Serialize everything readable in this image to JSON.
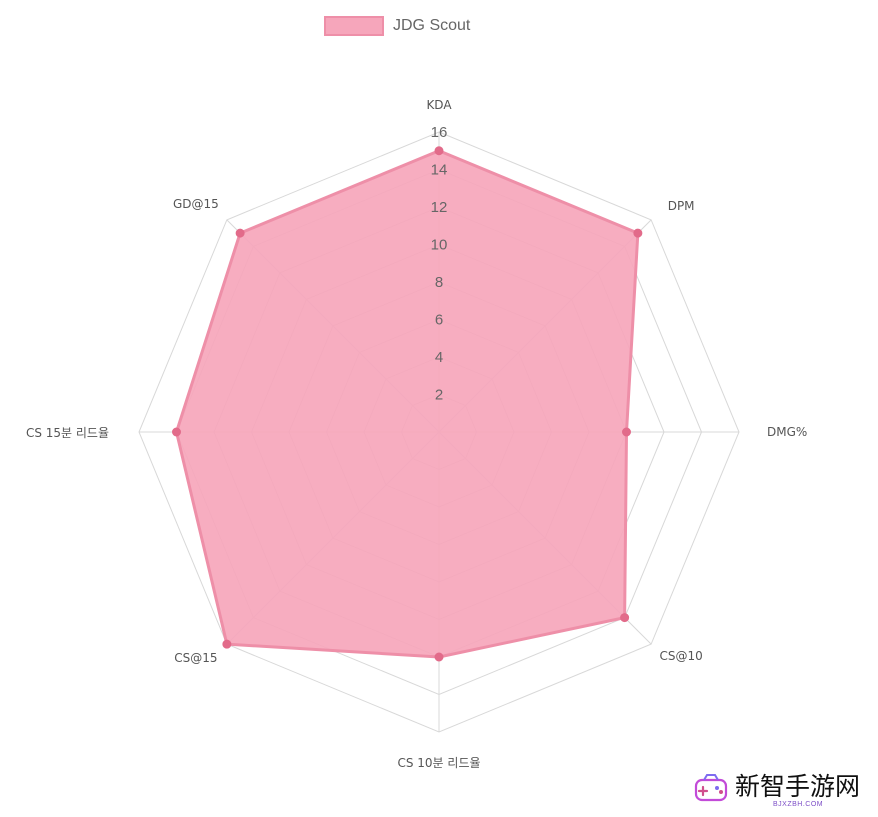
{
  "legend": {
    "label": "JDG Scout",
    "fill": "#f6a6bb",
    "stroke": "#ee8fa8"
  },
  "watermark": {
    "text": "新智手游网",
    "subtext": "BJXZBH.COM",
    "icon": "game-controller-logo-icon",
    "color": "#111111",
    "accent": "#c24bd8"
  },
  "chart_data": {
    "type": "radar",
    "title": "",
    "axes": [
      "KDA",
      "DPM",
      "DMG%",
      "CS@10",
      "CS 10분 리드율",
      "CS@15",
      "CS 15분 리드율",
      "GD@15"
    ],
    "series": [
      {
        "name": "JDG Scout",
        "values": [
          15,
          15,
          10,
          14,
          12,
          16,
          14,
          15
        ],
        "fill": "#f6a6bb",
        "stroke": "#ee8fa8",
        "point_color": "#e26b8a"
      }
    ],
    "r_range": [
      0,
      16
    ],
    "r_ticks": [
      2,
      4,
      6,
      8,
      10,
      12,
      14,
      16
    ],
    "grid": true,
    "legend_position": "top"
  }
}
